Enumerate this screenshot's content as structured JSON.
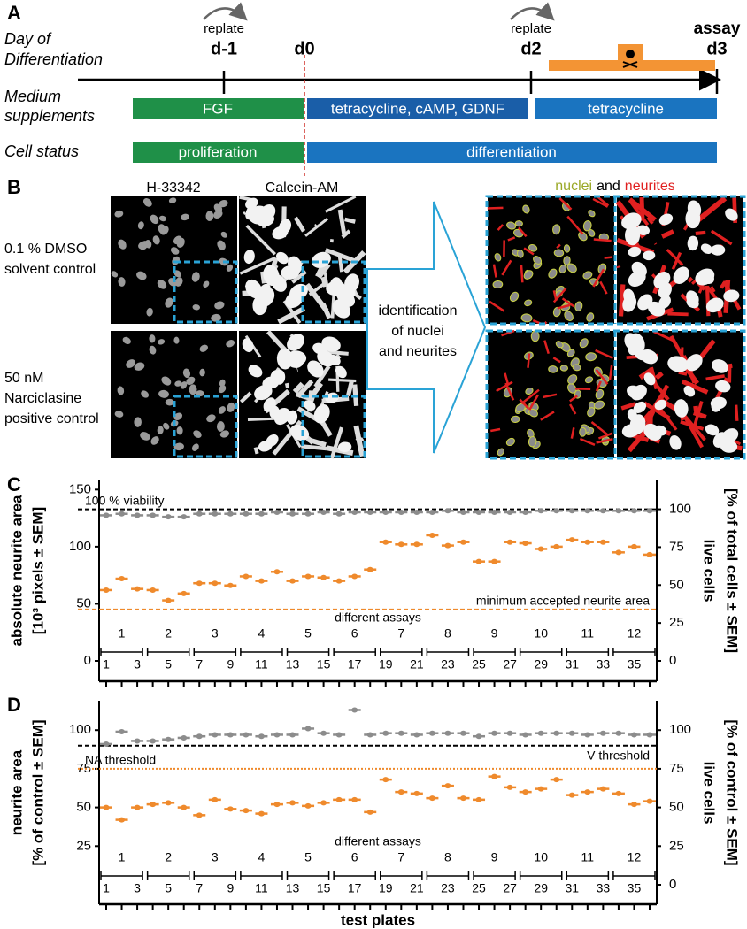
{
  "panel_a": {
    "label": "A",
    "day_title": [
      "Day of",
      "Differentiation"
    ],
    "days": [
      {
        "note": "replate",
        "label": "d-1"
      },
      {
        "label": "d0"
      },
      {
        "note": "replate",
        "label": "d2"
      },
      {
        "note": "assay",
        "label": "d3"
      }
    ],
    "medium_title": [
      "Medium",
      "supplements"
    ],
    "medium": [
      "FGF",
      "tetracycline, cAMP, GDNF",
      "tetracycline"
    ],
    "status_title": "Cell status",
    "status": [
      "proliferation",
      "differentiation"
    ]
  },
  "panel_b": {
    "label": "B",
    "stains": [
      "H-33342",
      "Calcein-AM"
    ],
    "conditions": [
      [
        "0.1 % DMSO",
        "solvent control"
      ],
      [
        "50 nM",
        "Narciclasine",
        "positive control"
      ]
    ],
    "step": [
      "identification",
      "of nuclei",
      "and neurites"
    ],
    "result_title": [
      "nuclei",
      "and",
      "neurites"
    ]
  },
  "chart_data": [
    {
      "type": "dot",
      "panel": "C",
      "ylabel": [
        "absolute neurite area",
        "[10³ pixels ± SEM]"
      ],
      "y2label": [
        "live cells",
        "[% of total cells ± SEM]"
      ],
      "categories": [
        "1",
        null,
        "3",
        null,
        "5",
        null,
        "7",
        null,
        "9",
        null,
        "11",
        null,
        "13",
        null,
        "15",
        null,
        "17",
        null,
        "19",
        null,
        "21",
        null,
        "23",
        null,
        "25",
        null,
        "27",
        null,
        "29",
        null,
        "31",
        null,
        "33",
        null,
        "35",
        null
      ],
      "group_title": "different assays",
      "groups": [
        "1",
        "2",
        "3",
        "4",
        "5",
        "6",
        "7",
        "8",
        "9",
        "10",
        "11",
        "12"
      ],
      "ylim": [
        0,
        158
      ],
      "yticks": [
        0,
        50,
        100,
        150
      ],
      "y2lim": [
        0,
        119
      ],
      "y2ticks": [
        0,
        25,
        50,
        75,
        100
      ],
      "series": [
        {
          "color": "#ef8a2c",
          "values": [
            62,
            72,
            63,
            62,
            53,
            59,
            68,
            68,
            66,
            74,
            70,
            78,
            70,
            74,
            73,
            70,
            74,
            80,
            104,
            102,
            102,
            110,
            101,
            104,
            87,
            87,
            104,
            103,
            98,
            100,
            106,
            104,
            104,
            95,
            100,
            93
          ]
        },
        {
          "color": "#8c8c8c",
          "axis": "y2",
          "values": [
            96,
            97,
            96,
            96,
            95,
            95,
            97,
            97,
            97,
            97,
            97,
            98,
            97,
            97,
            98,
            97,
            98,
            98,
            98,
            98,
            98,
            98,
            99,
            98,
            98,
            98,
            98,
            98,
            99,
            99,
            99,
            99,
            99,
            99,
            99,
            99
          ]
        }
      ],
      "ref_lines": [
        {
          "label": "100 % viability",
          "value": 100,
          "axis": "y2",
          "color": "#000000",
          "style": "dashed",
          "label_align": "left",
          "label_side": "above"
        },
        {
          "label": "minimum accepted neurite area",
          "value": 45,
          "axis": "y",
          "color": "#ef8a2c",
          "style": "dashed",
          "label_align": "right",
          "label_side": "above"
        }
      ]
    },
    {
      "type": "dot",
      "panel": "D",
      "ylabel": [
        "neurite area",
        "[% of control ± SEM]"
      ],
      "y2label": [
        "live cells",
        "[% of control ± SEM]"
      ],
      "xlabel": "test plates",
      "categories": [
        "1",
        null,
        "3",
        null,
        "5",
        null,
        "7",
        null,
        "9",
        null,
        "11",
        null,
        "13",
        null,
        "15",
        null,
        "17",
        null,
        "19",
        null,
        "21",
        null,
        "23",
        null,
        "25",
        null,
        "27",
        null,
        "29",
        null,
        "31",
        null,
        "33",
        null,
        "35",
        null
      ],
      "group_title": "different assays",
      "groups": [
        "1",
        "2",
        "3",
        "4",
        "5",
        "6",
        "7",
        "8",
        "9",
        "10",
        "11",
        "12"
      ],
      "ylim": [
        0,
        119
      ],
      "yticks": [
        25,
        50,
        75,
        100
      ],
      "y2lim": [
        0,
        119
      ],
      "y2ticks": [
        0,
        25,
        50,
        75,
        100
      ],
      "series": [
        {
          "color": "#ef8a2c",
          "values": [
            50,
            42,
            50,
            52,
            53,
            50,
            45,
            55,
            49,
            48,
            46,
            52,
            53,
            51,
            53,
            55,
            55,
            47,
            68,
            60,
            59,
            56,
            64,
            56,
            55,
            70,
            63,
            60,
            62,
            68,
            58,
            60,
            62,
            59,
            52,
            54
          ]
        },
        {
          "color": "#8c8c8c",
          "axis": "y2",
          "values": [
            91,
            99,
            93,
            93,
            94,
            95,
            96,
            97,
            97,
            97,
            96,
            97,
            97,
            101,
            98,
            97,
            113,
            97,
            98,
            98,
            97,
            98,
            98,
            98,
            96,
            98,
            98,
            97,
            98,
            98,
            98,
            97,
            98,
            98,
            97,
            97
          ]
        }
      ],
      "ref_lines": [
        {
          "label": "NA threshold",
          "value": 75,
          "axis": "y",
          "color": "#ef8a2c",
          "style": "dotted",
          "label_align": "left",
          "label_side": "above"
        },
        {
          "label": "V threshold",
          "value": 90,
          "axis": "y2",
          "color": "#000000",
          "style": "dashed",
          "label_align": "right",
          "label_side": "below"
        }
      ]
    }
  ]
}
